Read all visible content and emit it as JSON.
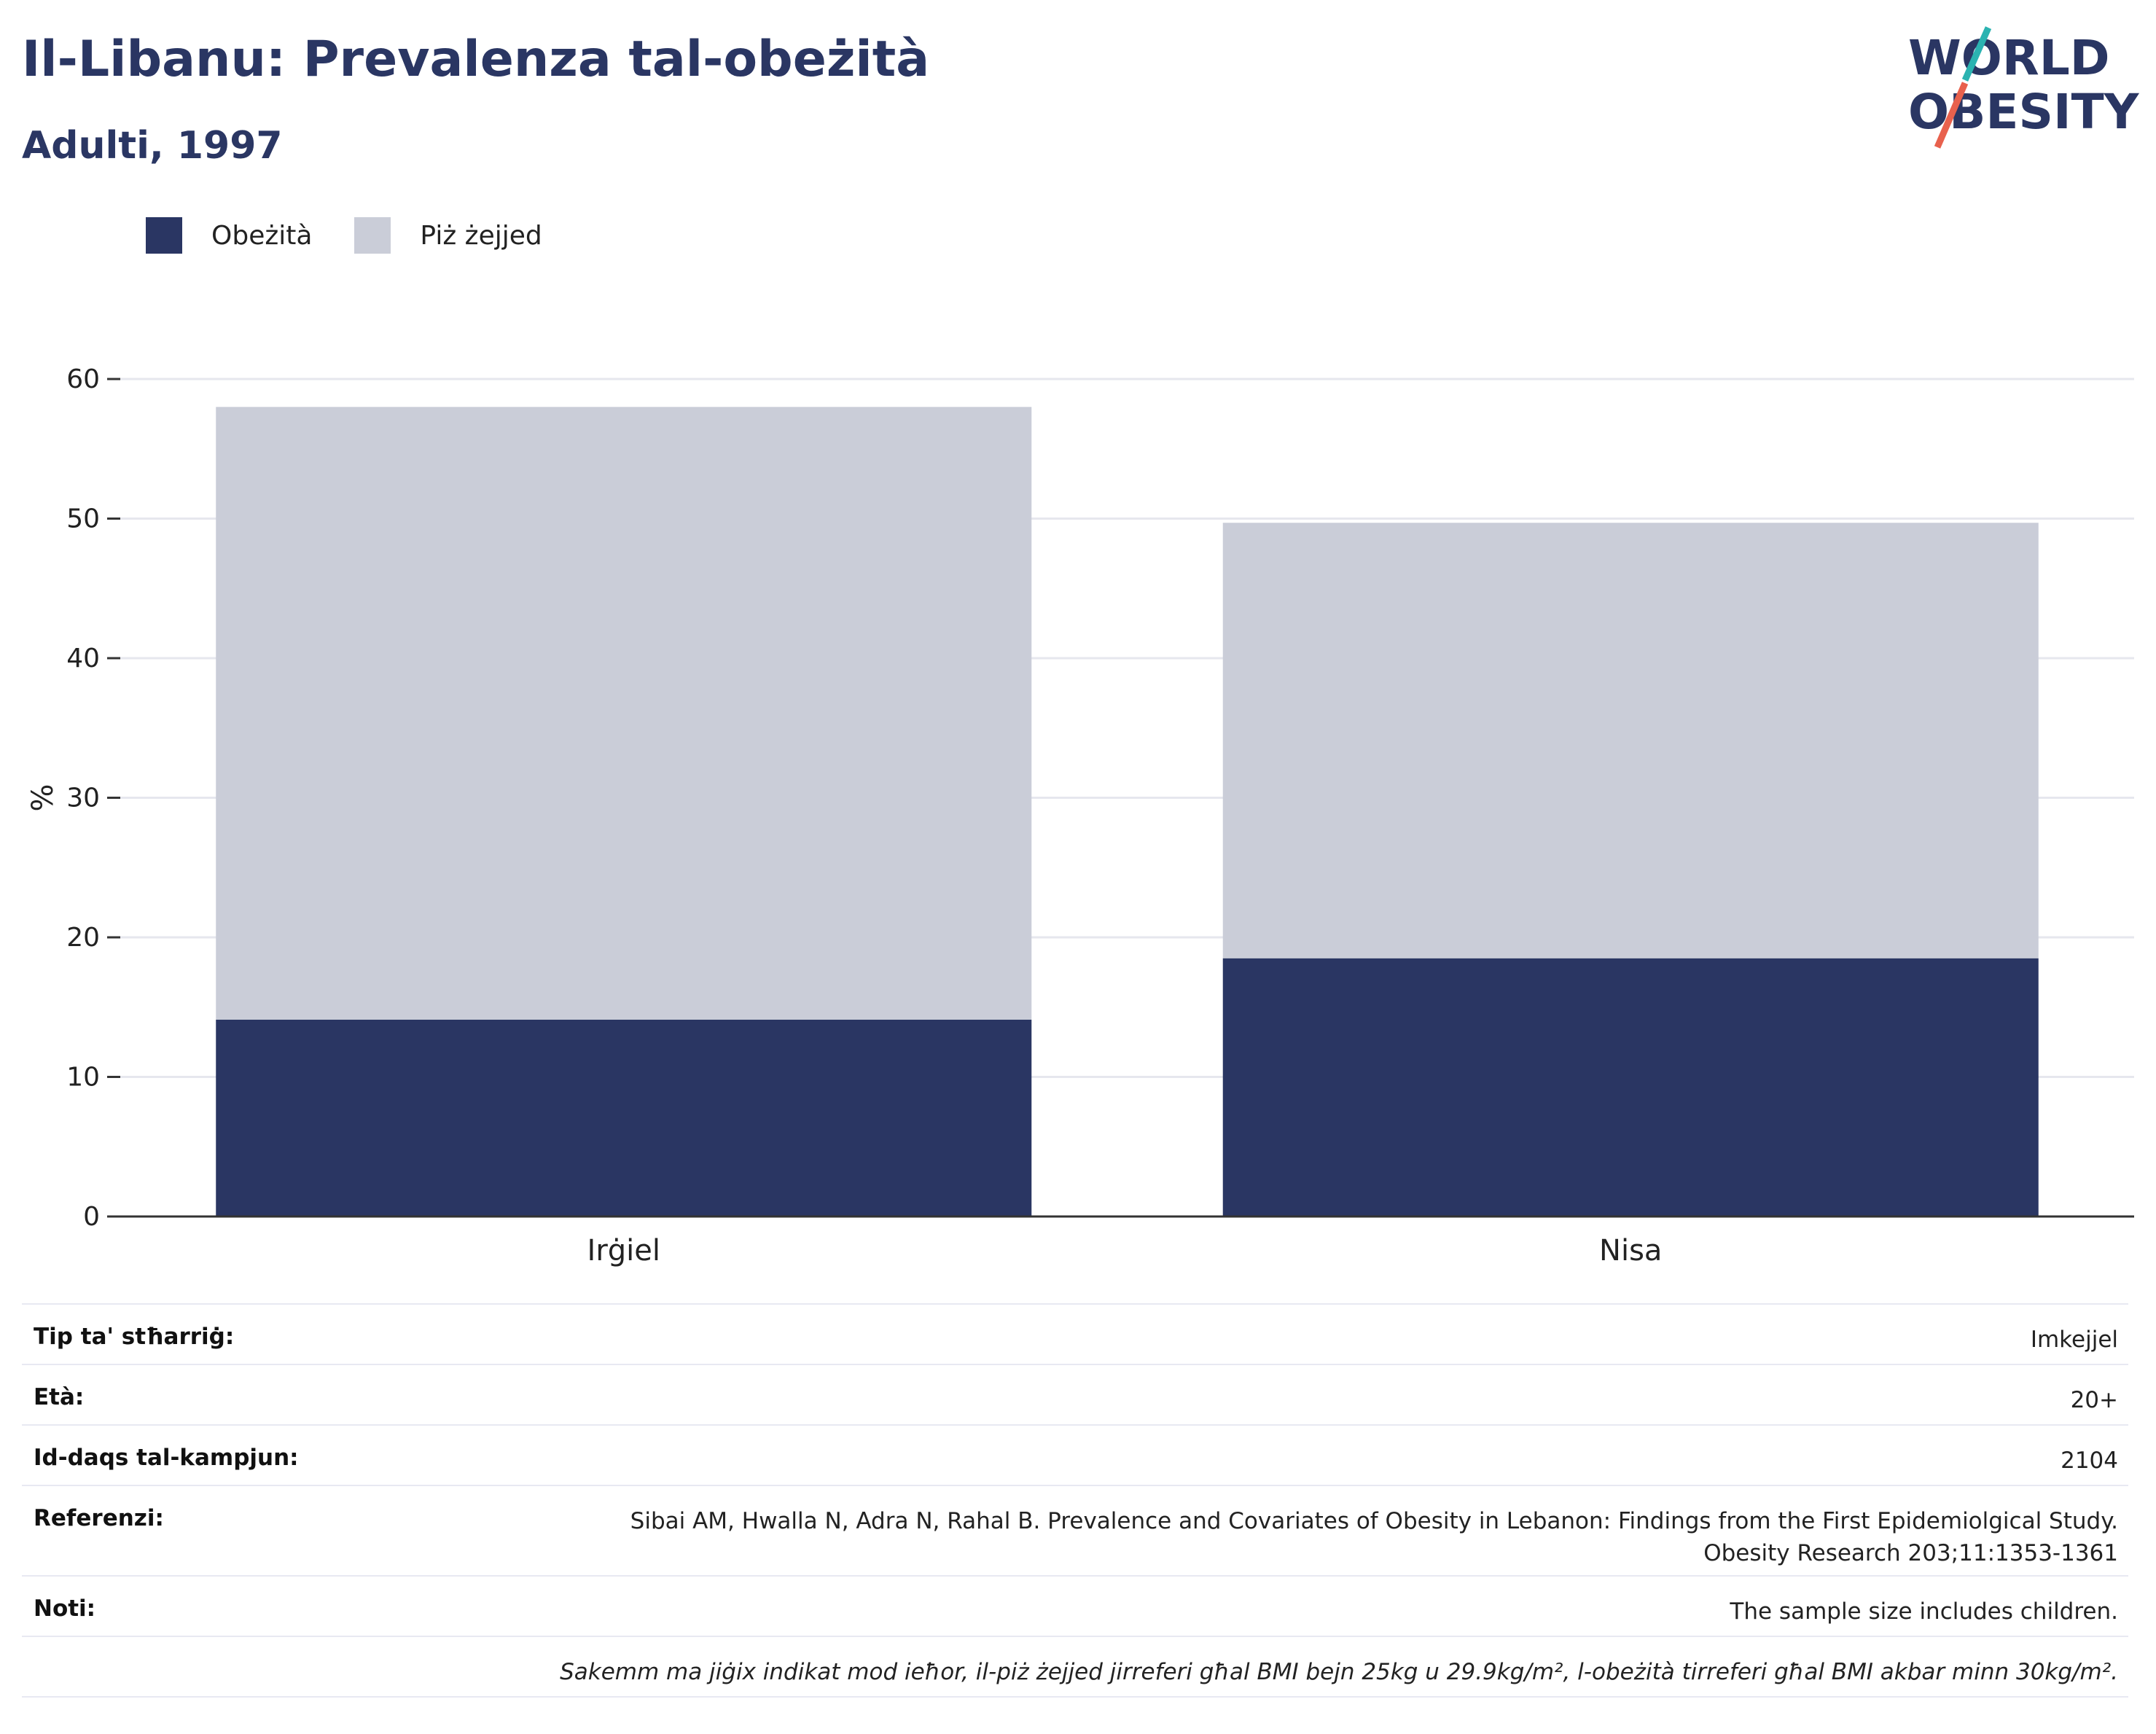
{
  "header": {
    "title": "Il-Libanu: Prevalenza tal-obeżità",
    "subtitle": "Adulti, 1997"
  },
  "logo": {
    "line1": "WORLD",
    "line2": "OBESITY"
  },
  "legend": [
    {
      "label": "Obeżità",
      "color": "#2a3663"
    },
    {
      "label": "Piż żejjed",
      "color": "#cacdd8"
    }
  ],
  "chart_data": {
    "type": "bar",
    "stacked": true,
    "categories": [
      "Irġiel",
      "Nisa"
    ],
    "series": [
      {
        "name": "Obeżità",
        "values": [
          14.1,
          18.5
        ],
        "color": "#2a3663"
      },
      {
        "name": "Piż żejjed",
        "values": [
          43.9,
          31.2
        ],
        "color": "#cacdd8"
      }
    ],
    "ylabel": "%",
    "ylim": [
      0,
      60
    ],
    "yticks": [
      0,
      10,
      20,
      30,
      40,
      50,
      60
    ],
    "grid": true,
    "legend_position": "top-left"
  },
  "info": {
    "rows": [
      {
        "key": "Tip ta' stħarriġ:",
        "value": "Imkejjel"
      },
      {
        "key": "Età:",
        "value": "20+"
      },
      {
        "key": "Id-daqs tal-kampjun:",
        "value": "2104"
      },
      {
        "key": "Referenzi:",
        "value": "Sibai AM, Hwalla N, Adra N, Rahal B. Prevalence and Covariates of Obesity in Lebanon: Findings from the First Epidemiolgical Study.",
        "value2": "Obesity Research 203;11:1353-1361"
      },
      {
        "key": "Noti:",
        "value": "The sample size includes children."
      }
    ],
    "footnote": "Sakemm ma jiġix indikat mod ieħor, il-piż żejjed jirreferi għal BMI bejn 25kg u 29.9kg/m², l-obeżità tirreferi għal BMI akbar minn 30kg/m²."
  }
}
